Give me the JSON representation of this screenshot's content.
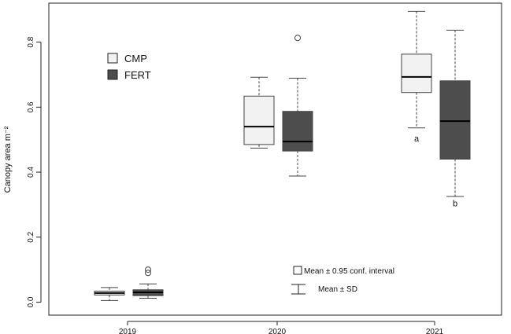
{
  "chart_data": {
    "type": "box",
    "ylabel": "Canopy area  m⁻²",
    "categories": [
      "2019",
      "2020",
      "2021"
    ],
    "ylim": [
      -0.04,
      0.92
    ],
    "yticks": [
      "0.0",
      "0.2",
      "0.4",
      "0.6",
      "0.8"
    ],
    "grid": false,
    "legend": {
      "placement": "top-left",
      "entries": [
        {
          "name": "CMP",
          "color": "#f2f2f2"
        },
        {
          "name": "FERT",
          "color": "#4d4d4d"
        }
      ]
    },
    "series": [
      {
        "name": "CMP",
        "color": "#f2f2f2",
        "boxes": [
          {
            "category": "2019",
            "min": 0.005,
            "q1": 0.022,
            "median": 0.028,
            "q3": 0.034,
            "max": 0.045,
            "outliers": []
          },
          {
            "category": "2020",
            "min": 0.474,
            "q1": 0.485,
            "median": 0.54,
            "q3": 0.634,
            "max": 0.692,
            "outliers": []
          },
          {
            "category": "2021",
            "min": 0.536,
            "q1": 0.645,
            "median": 0.693,
            "q3": 0.763,
            "max": 0.895,
            "outliers": []
          }
        ]
      },
      {
        "name": "FERT",
        "color": "#4d4d4d",
        "boxes": [
          {
            "category": "2019",
            "min": 0.012,
            "q1": 0.02,
            "median": 0.03,
            "q3": 0.038,
            "max": 0.056,
            "outliers": [
              0.09,
              0.1
            ]
          },
          {
            "category": "2020",
            "min": 0.388,
            "q1": 0.465,
            "median": 0.494,
            "q3": 0.587,
            "max": 0.689,
            "outliers": [
              0.813
            ]
          },
          {
            "category": "2021",
            "min": 0.325,
            "q1": 0.44,
            "median": 0.557,
            "q3": 0.681,
            "max": 0.837,
            "outliers": []
          }
        ]
      }
    ],
    "annotations": [
      {
        "text": "a",
        "category": "2021",
        "series": "CMP",
        "y": 0.495
      },
      {
        "text": "b",
        "category": "2021",
        "series": "FERT",
        "y": 0.295
      }
    ],
    "key": [
      {
        "text": "Mean ±  0.95 conf. interval"
      },
      {
        "text": "Mean ± SD"
      }
    ]
  }
}
